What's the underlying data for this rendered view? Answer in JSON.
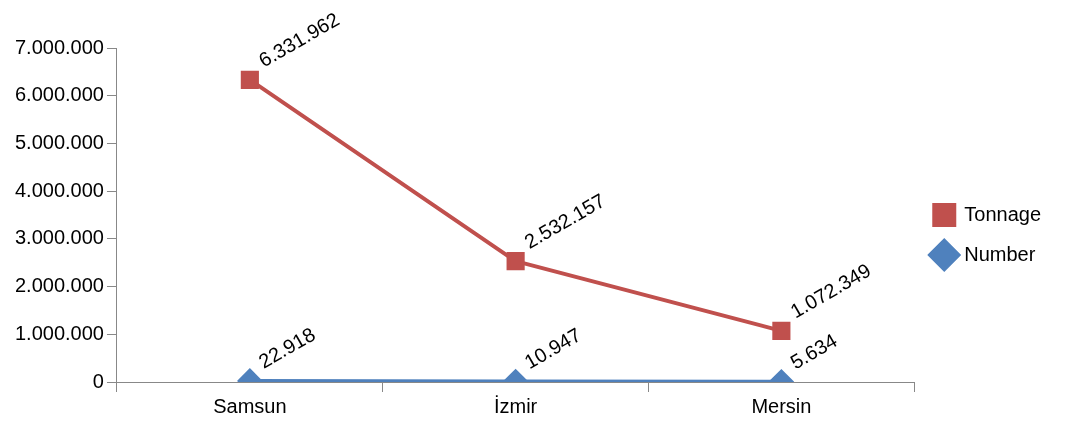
{
  "chart_data": {
    "type": "line",
    "categories": [
      "Samsun",
      "İzmir",
      "Mersin"
    ],
    "series": [
      {
        "name": "Tonnage",
        "color": "#c0504d",
        "marker": "square",
        "values": [
          6331962,
          2532157,
          1072349
        ],
        "value_labels": [
          "6.331.962",
          "2.532.157",
          "1.072.349"
        ]
      },
      {
        "name": "Number",
        "color": "#4f81bd",
        "marker": "diamond",
        "values": [
          22918,
          10947,
          5634
        ],
        "value_labels": [
          "22.918",
          "10.947",
          "5.634"
        ]
      }
    ],
    "ylim": [
      0,
      7000000
    ],
    "yticks": [
      {
        "value": 0,
        "label": "0"
      },
      {
        "value": 1000000,
        "label": "1.000.000"
      },
      {
        "value": 2000000,
        "label": "2.000.000"
      },
      {
        "value": 3000000,
        "label": "3.000.000"
      },
      {
        "value": 4000000,
        "label": "4.000.000"
      },
      {
        "value": 5000000,
        "label": "5.000.000"
      },
      {
        "value": 6000000,
        "label": "6.000.000"
      },
      {
        "value": 7000000,
        "label": "7.000.000"
      }
    ],
    "grid": false,
    "legend": "right"
  }
}
